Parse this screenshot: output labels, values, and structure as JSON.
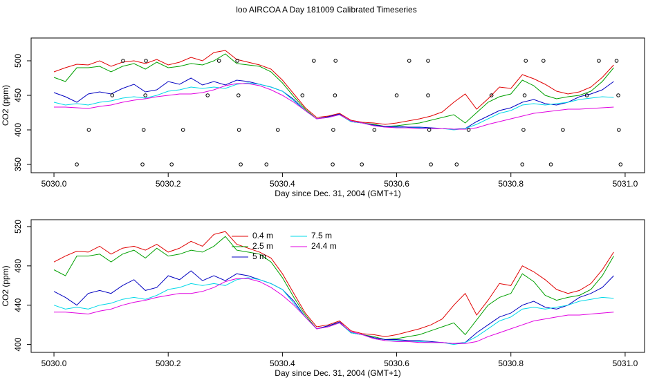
{
  "chart_data": [
    {
      "type": "line",
      "title": "loo AIRCOA A  Day 181009  Calibrated Timeseries",
      "x_label": "Day since Dec. 31, 2004 (GMT+1)",
      "y_label": "CO2 (ppm)",
      "xlim": [
        5029.96,
        5031.034
      ],
      "ylim": [
        338,
        533
      ],
      "xticks": [
        {
          "value": 5030,
          "label": "5030.0"
        },
        {
          "value": 5030.2,
          "label": "5030.2"
        },
        {
          "value": 5030.4,
          "label": "5030.4"
        },
        {
          "value": 5030.6,
          "label": "5030.6"
        },
        {
          "value": 5030.8,
          "label": "5030.8"
        },
        {
          "value": 5031,
          "label": "5031.0"
        }
      ],
      "yticks": [
        350,
        400,
        450,
        500
      ],
      "x": [
        5030,
        5030.02,
        5030.04,
        5030.06,
        5030.08,
        5030.1,
        5030.12,
        5030.14,
        5030.16,
        5030.18,
        5030.2,
        5030.22,
        5030.24,
        5030.26,
        5030.28,
        5030.3,
        5030.32,
        5030.34,
        5030.36,
        5030.38,
        5030.4,
        5030.42,
        5030.44,
        5030.46,
        5030.48,
        5030.5,
        5030.52,
        5030.54,
        5030.56,
        5030.58,
        5030.6,
        5030.62,
        5030.64,
        5030.66,
        5030.68,
        5030.7,
        5030.72,
        5030.74,
        5030.76,
        5030.78,
        5030.8,
        5030.82,
        5030.84,
        5030.86,
        5030.88,
        5030.9,
        5030.92,
        5030.94,
        5030.96,
        5030.98
      ],
      "series": [
        {
          "color": "#e00000",
          "values": [
            484,
            490,
            495,
            494,
            500,
            492,
            498,
            500,
            496,
            502,
            494,
            498,
            505,
            500,
            512,
            515,
            502,
            498,
            494,
            488,
            472,
            452,
            432,
            418,
            420,
            424,
            414,
            411,
            410,
            408,
            410,
            413,
            416,
            420,
            426,
            440,
            452,
            430,
            445,
            462,
            460,
            480,
            474,
            466,
            456,
            452,
            455,
            462,
            476,
            494
          ]
        },
        {
          "color": "#00a000",
          "values": [
            476,
            470,
            490,
            490,
            492,
            484,
            492,
            496,
            488,
            498,
            490,
            492,
            496,
            494,
            500,
            510,
            496,
            494,
            492,
            484,
            468,
            448,
            430,
            416,
            419,
            422,
            412,
            410,
            408,
            405,
            406,
            408,
            410,
            414,
            418,
            422,
            410,
            425,
            440,
            448,
            452,
            472,
            464,
            450,
            445,
            448,
            450,
            456,
            470,
            490
          ]
        },
        {
          "color": "#0000c0",
          "values": [
            454,
            448,
            440,
            452,
            455,
            452,
            460,
            466,
            455,
            458,
            470,
            466,
            475,
            465,
            470,
            465,
            472,
            470,
            466,
            462,
            456,
            444,
            428,
            416,
            419,
            423,
            412,
            410,
            407,
            405,
            405,
            404,
            404,
            403,
            402,
            401,
            402,
            412,
            420,
            428,
            432,
            440,
            444,
            438,
            436,
            440,
            448,
            452,
            458,
            470
          ]
        },
        {
          "color": "#00d8e8",
          "values": [
            440,
            436,
            438,
            436,
            440,
            442,
            446,
            448,
            446,
            450,
            456,
            458,
            462,
            460,
            462,
            460,
            466,
            468,
            466,
            462,
            456,
            442,
            428,
            416,
            418,
            422,
            412,
            410,
            406,
            404,
            404,
            403,
            403,
            402,
            402,
            400,
            402,
            408,
            416,
            424,
            428,
            436,
            438,
            436,
            438,
            440,
            444,
            446,
            448,
            447
          ]
        },
        {
          "color": "#e000e0",
          "values": [
            433,
            433,
            432,
            431,
            434,
            436,
            440,
            443,
            445,
            448,
            450,
            452,
            452,
            454,
            458,
            464,
            467,
            467,
            464,
            458,
            450,
            440,
            428,
            416,
            418,
            422,
            413,
            410,
            406,
            404,
            403,
            403,
            402,
            402,
            402,
            401,
            401,
            403,
            408,
            412,
            416,
            420,
            424,
            426,
            428,
            430,
            430,
            431,
            432,
            433
          ]
        }
      ],
      "points_x": [
        5030.121,
        5030.161,
        5030.289,
        5030.321,
        5030.455,
        5030.493,
        5030.622,
        5030.655,
        5030.826,
        5030.857,
        5030.954,
        5030.985,
        5030.102,
        5030.16,
        5030.269,
        5030.323,
        5030.435,
        5030.492,
        5030.6,
        5030.655,
        5030.766,
        5030.824,
        5030.933,
        5030.988,
        5030.061,
        5030.157,
        5030.226,
        5030.324,
        5030.392,
        5030.489,
        5030.561,
        5030.657,
        5030.726,
        5030.822,
        5030.891,
        5030.989,
        5030.04,
        5030.155,
        5030.206,
        5030.327,
        5030.372,
        5030.488,
        5030.539,
        5030.66,
        5030.705,
        5030.82,
        5030.87,
        5030.992
      ],
      "points_y": [
        500,
        500,
        500,
        500,
        500,
        500,
        500,
        500,
        500,
        500,
        500,
        500,
        450,
        450,
        450,
        450,
        450,
        450,
        450,
        450,
        450,
        450,
        450,
        450,
        400,
        400,
        400,
        400,
        400,
        400,
        400,
        400,
        400,
        400,
        400,
        400,
        350,
        350,
        350,
        350,
        350,
        350,
        350,
        350,
        350,
        350,
        350,
        350
      ]
    },
    {
      "type": "line",
      "x_label": "Day since Dec. 31, 2004 (GMT+1)",
      "y_label": "CO2 (ppm)",
      "xlim": [
        5029.96,
        5031.034
      ],
      "ylim": [
        392,
        527
      ],
      "xticks": [
        {
          "value": 5030,
          "label": "5030.0"
        },
        {
          "value": 5030.2,
          "label": "5030.2"
        },
        {
          "value": 5030.4,
          "label": "5030.4"
        },
        {
          "value": 5030.6,
          "label": "5030.6"
        },
        {
          "value": 5030.8,
          "label": "5030.8"
        },
        {
          "value": 5031,
          "label": "5031.0"
        }
      ],
      "yticks": [
        400,
        440,
        480,
        520
      ],
      "x": [
        5030,
        5030.02,
        5030.04,
        5030.06,
        5030.08,
        5030.1,
        5030.12,
        5030.14,
        5030.16,
        5030.18,
        5030.2,
        5030.22,
        5030.24,
        5030.26,
        5030.28,
        5030.3,
        5030.32,
        5030.34,
        5030.36,
        5030.38,
        5030.4,
        5030.42,
        5030.44,
        5030.46,
        5030.48,
        5030.5,
        5030.52,
        5030.54,
        5030.56,
        5030.58,
        5030.6,
        5030.62,
        5030.64,
        5030.66,
        5030.68,
        5030.7,
        5030.72,
        5030.74,
        5030.76,
        5030.78,
        5030.8,
        5030.82,
        5030.84,
        5030.86,
        5030.88,
        5030.9,
        5030.92,
        5030.94,
        5030.96,
        5030.98
      ],
      "series": [
        {
          "name": "0.4 m",
          "color": "#e00000",
          "values": [
            484,
            490,
            495,
            494,
            500,
            492,
            498,
            500,
            496,
            502,
            494,
            498,
            505,
            500,
            512,
            515,
            502,
            498,
            494,
            488,
            472,
            452,
            432,
            418,
            420,
            424,
            414,
            411,
            410,
            408,
            410,
            413,
            416,
            420,
            426,
            440,
            452,
            430,
            445,
            462,
            460,
            480,
            474,
            466,
            456,
            452,
            455,
            462,
            476,
            494
          ]
        },
        {
          "name": "2.5 m",
          "color": "#00a000",
          "values": [
            476,
            470,
            490,
            490,
            492,
            484,
            492,
            496,
            488,
            498,
            490,
            492,
            496,
            494,
            500,
            510,
            496,
            494,
            492,
            484,
            468,
            448,
            430,
            416,
            419,
            422,
            412,
            410,
            408,
            405,
            406,
            408,
            410,
            414,
            418,
            422,
            410,
            425,
            440,
            448,
            452,
            472,
            464,
            450,
            445,
            448,
            450,
            456,
            470,
            490
          ]
        },
        {
          "name": "5 m",
          "color": "#0000c0",
          "values": [
            454,
            448,
            440,
            452,
            455,
            452,
            460,
            466,
            455,
            458,
            470,
            466,
            475,
            465,
            470,
            465,
            472,
            470,
            466,
            462,
            456,
            444,
            428,
            416,
            419,
            423,
            412,
            410,
            407,
            405,
            405,
            404,
            404,
            403,
            402,
            401,
            402,
            412,
            420,
            428,
            432,
            440,
            444,
            438,
            436,
            440,
            448,
            452,
            458,
            470
          ]
        },
        {
          "name": "7.5 m",
          "color": "#00d8e8",
          "values": [
            440,
            436,
            438,
            436,
            440,
            442,
            446,
            448,
            446,
            450,
            456,
            458,
            462,
            460,
            462,
            460,
            466,
            468,
            466,
            462,
            456,
            442,
            428,
            416,
            418,
            422,
            412,
            410,
            406,
            404,
            404,
            403,
            403,
            402,
            402,
            400,
            402,
            408,
            416,
            424,
            428,
            436,
            438,
            436,
            438,
            440,
            444,
            446,
            448,
            447
          ]
        },
        {
          "name": "24.4 m",
          "color": "#e000e0",
          "values": [
            433,
            433,
            432,
            431,
            434,
            436,
            440,
            443,
            445,
            448,
            450,
            452,
            452,
            454,
            458,
            464,
            467,
            467,
            464,
            458,
            450,
            440,
            428,
            416,
            418,
            422,
            413,
            410,
            406,
            404,
            403,
            403,
            402,
            402,
            402,
            401,
            401,
            403,
            408,
            412,
            416,
            420,
            424,
            426,
            428,
            430,
            430,
            431,
            432,
            433
          ]
        }
      ]
    }
  ]
}
